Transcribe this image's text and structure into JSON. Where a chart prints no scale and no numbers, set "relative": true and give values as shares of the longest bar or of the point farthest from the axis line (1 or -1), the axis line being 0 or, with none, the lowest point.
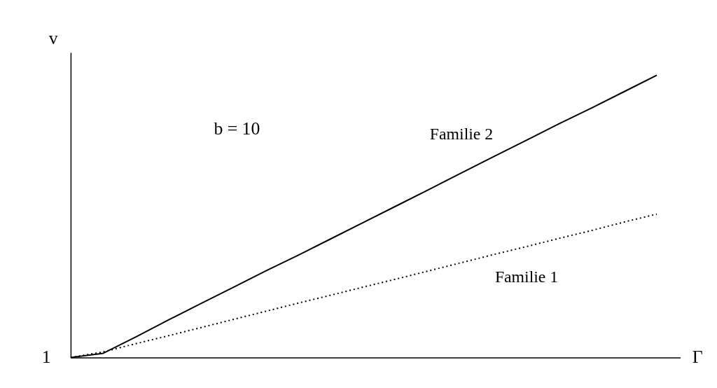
{
  "chart_data": {
    "type": "line",
    "relative": true,
    "xlabel": "Γ",
    "ylabel": "v",
    "categories": [
      null,
      null,
      null,
      null,
      null,
      null,
      null,
      null,
      null,
      null,
      null,
      null,
      null,
      null,
      null,
      null,
      null,
      null,
      null
    ],
    "series": [
      {
        "name": "Familie 2",
        "color": "#000000",
        "line_style": "solid",
        "values": [
          0,
          0.015,
          0.073,
          0.133,
          0.191,
          0.249,
          0.307,
          0.363,
          0.421,
          0.479,
          0.537,
          0.595,
          0.654,
          0.712,
          0.77,
          0.828,
          0.884,
          0.942,
          1
        ]
      },
      {
        "name": "Familie 1",
        "color": "#000000",
        "line_style": "dotted",
        "values": [
          0,
          0.02,
          0.049,
          0.077,
          0.106,
          0.135,
          0.164,
          0.193,
          0.221,
          0.25,
          0.278,
          0.307,
          0.336,
          0.365,
          0.393,
          0.422,
          0.45,
          0.48,
          0.508
        ]
      }
    ],
    "annotations": [
      "b = 10",
      "1"
    ],
    "grid": false,
    "marker": "none"
  }
}
